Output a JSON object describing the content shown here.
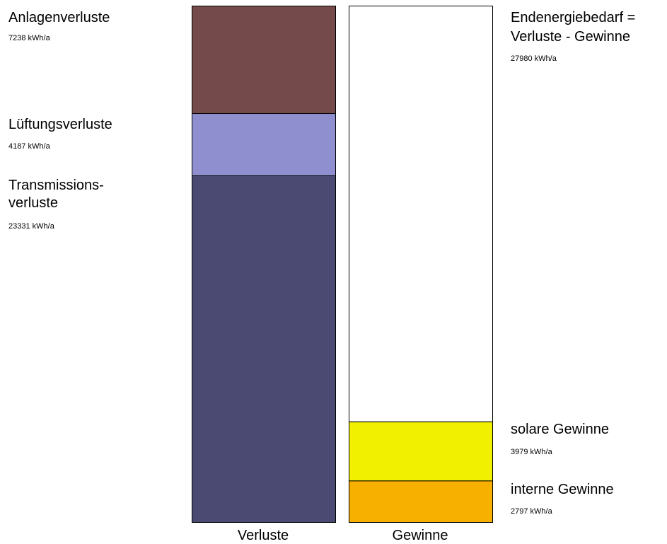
{
  "chart_data": {
    "type": "bar",
    "stacked": true,
    "categories": [
      "Verluste",
      "Gewinne"
    ],
    "ylim": [
      0,
      34756
    ],
    "grid": false,
    "legend": "none",
    "series": [
      {
        "name": "Transmissions- verluste",
        "category": "Verluste",
        "value": 23331,
        "value_label": "23331 kWh/a",
        "color": "#4a4a72"
      },
      {
        "name": "Lüftungsverluste",
        "category": "Verluste",
        "value": 4187,
        "value_label": "4187 kWh/a",
        "color": "#8f8fcf"
      },
      {
        "name": "Anlagenverluste",
        "category": "Verluste",
        "value": 7238,
        "value_label": "7238 kWh/a",
        "color": "#744a4a"
      },
      {
        "name": "interne Gewinne",
        "category": "Gewinne",
        "value": 2797,
        "value_label": "2797 kWh/a",
        "color": "#f8b000"
      },
      {
        "name": "solare Gewinne",
        "category": "Gewinne",
        "value": 3979,
        "value_label": "3979 kWh/a",
        "color": "#f0f000"
      },
      {
        "name": "Endenergiebedarf = Verluste - Gewinne",
        "category": "Gewinne",
        "value": 27980,
        "value_label": "27980 kWh/a",
        "color": "#ffffff"
      }
    ]
  },
  "labels": {
    "anlagen": {
      "lines": [
        "Anlagenverluste"
      ],
      "value": "7238 kWh/a"
    },
    "lueftung": {
      "lines": [
        "Lüftungsverluste"
      ],
      "value": "4187 kWh/a"
    },
    "transmission": {
      "lines": [
        "Transmissions-",
        "verluste"
      ],
      "value": "23331 kWh/a"
    },
    "endenergie": {
      "lines": [
        "Endenergiebedarf =",
        "Verluste - Gewinne"
      ],
      "value": "27980 kWh/a"
    },
    "solar": {
      "lines": [
        "solare Gewinne"
      ],
      "value": "3979 kWh/a"
    },
    "intern": {
      "lines": [
        "interne Gewinne"
      ],
      "value": "2797 kWh/a"
    }
  },
  "axis": {
    "verluste": "Verluste",
    "gewinne": "Gewinne"
  }
}
